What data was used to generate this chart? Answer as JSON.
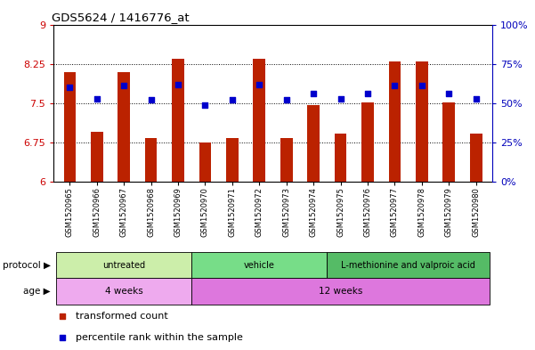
{
  "title": "GDS5624 / 1416776_at",
  "samples": [
    "GSM1520965",
    "GSM1520966",
    "GSM1520967",
    "GSM1520968",
    "GSM1520969",
    "GSM1520970",
    "GSM1520971",
    "GSM1520972",
    "GSM1520973",
    "GSM1520974",
    "GSM1520975",
    "GSM1520976",
    "GSM1520977",
    "GSM1520978",
    "GSM1520979",
    "GSM1520980"
  ],
  "transformed_count": [
    8.1,
    6.95,
    8.1,
    6.83,
    8.35,
    6.75,
    6.83,
    8.35,
    6.83,
    7.47,
    6.92,
    7.52,
    8.3,
    8.3,
    7.52,
    6.92
  ],
  "percentile_rank": [
    60,
    53,
    61,
    52,
    62,
    49,
    52,
    62,
    52,
    56,
    53,
    56,
    61,
    61,
    56,
    53
  ],
  "ylim_left": [
    6,
    9
  ],
  "ylim_right": [
    0,
    100
  ],
  "yticks_left": [
    6,
    6.75,
    7.5,
    8.25,
    9
  ],
  "yticks_right": [
    0,
    25,
    50,
    75,
    100
  ],
  "ytick_labels_left": [
    "6",
    "6.75",
    "7.5",
    "8.25",
    "9"
  ],
  "ytick_labels_right": [
    "0%",
    "25%",
    "50%",
    "75%",
    "100%"
  ],
  "hlines": [
    6.75,
    7.5,
    8.25
  ],
  "bar_color": "#bb2200",
  "dot_color": "#0000cc",
  "protocol_groups": [
    {
      "label": "untreated",
      "start": 0,
      "end": 4
    },
    {
      "label": "vehicle",
      "start": 5,
      "end": 9
    },
    {
      "label": "L-methionine and valproic acid",
      "start": 10,
      "end": 15
    }
  ],
  "protocol_colors": [
    "#cceeaa",
    "#77dd88",
    "#55bb66"
  ],
  "age_groups": [
    {
      "label": "4 weeks",
      "start": 0,
      "end": 4
    },
    {
      "label": "12 weeks",
      "start": 5,
      "end": 15
    }
  ],
  "age_colors": [
    "#eeaaee",
    "#dd77dd"
  ],
  "protocol_label": "protocol",
  "age_label": "age",
  "legend1": "transformed count",
  "legend2": "percentile rank within the sample",
  "ylabel_left_color": "#cc0000",
  "ylabel_right_color": "#0000bb"
}
